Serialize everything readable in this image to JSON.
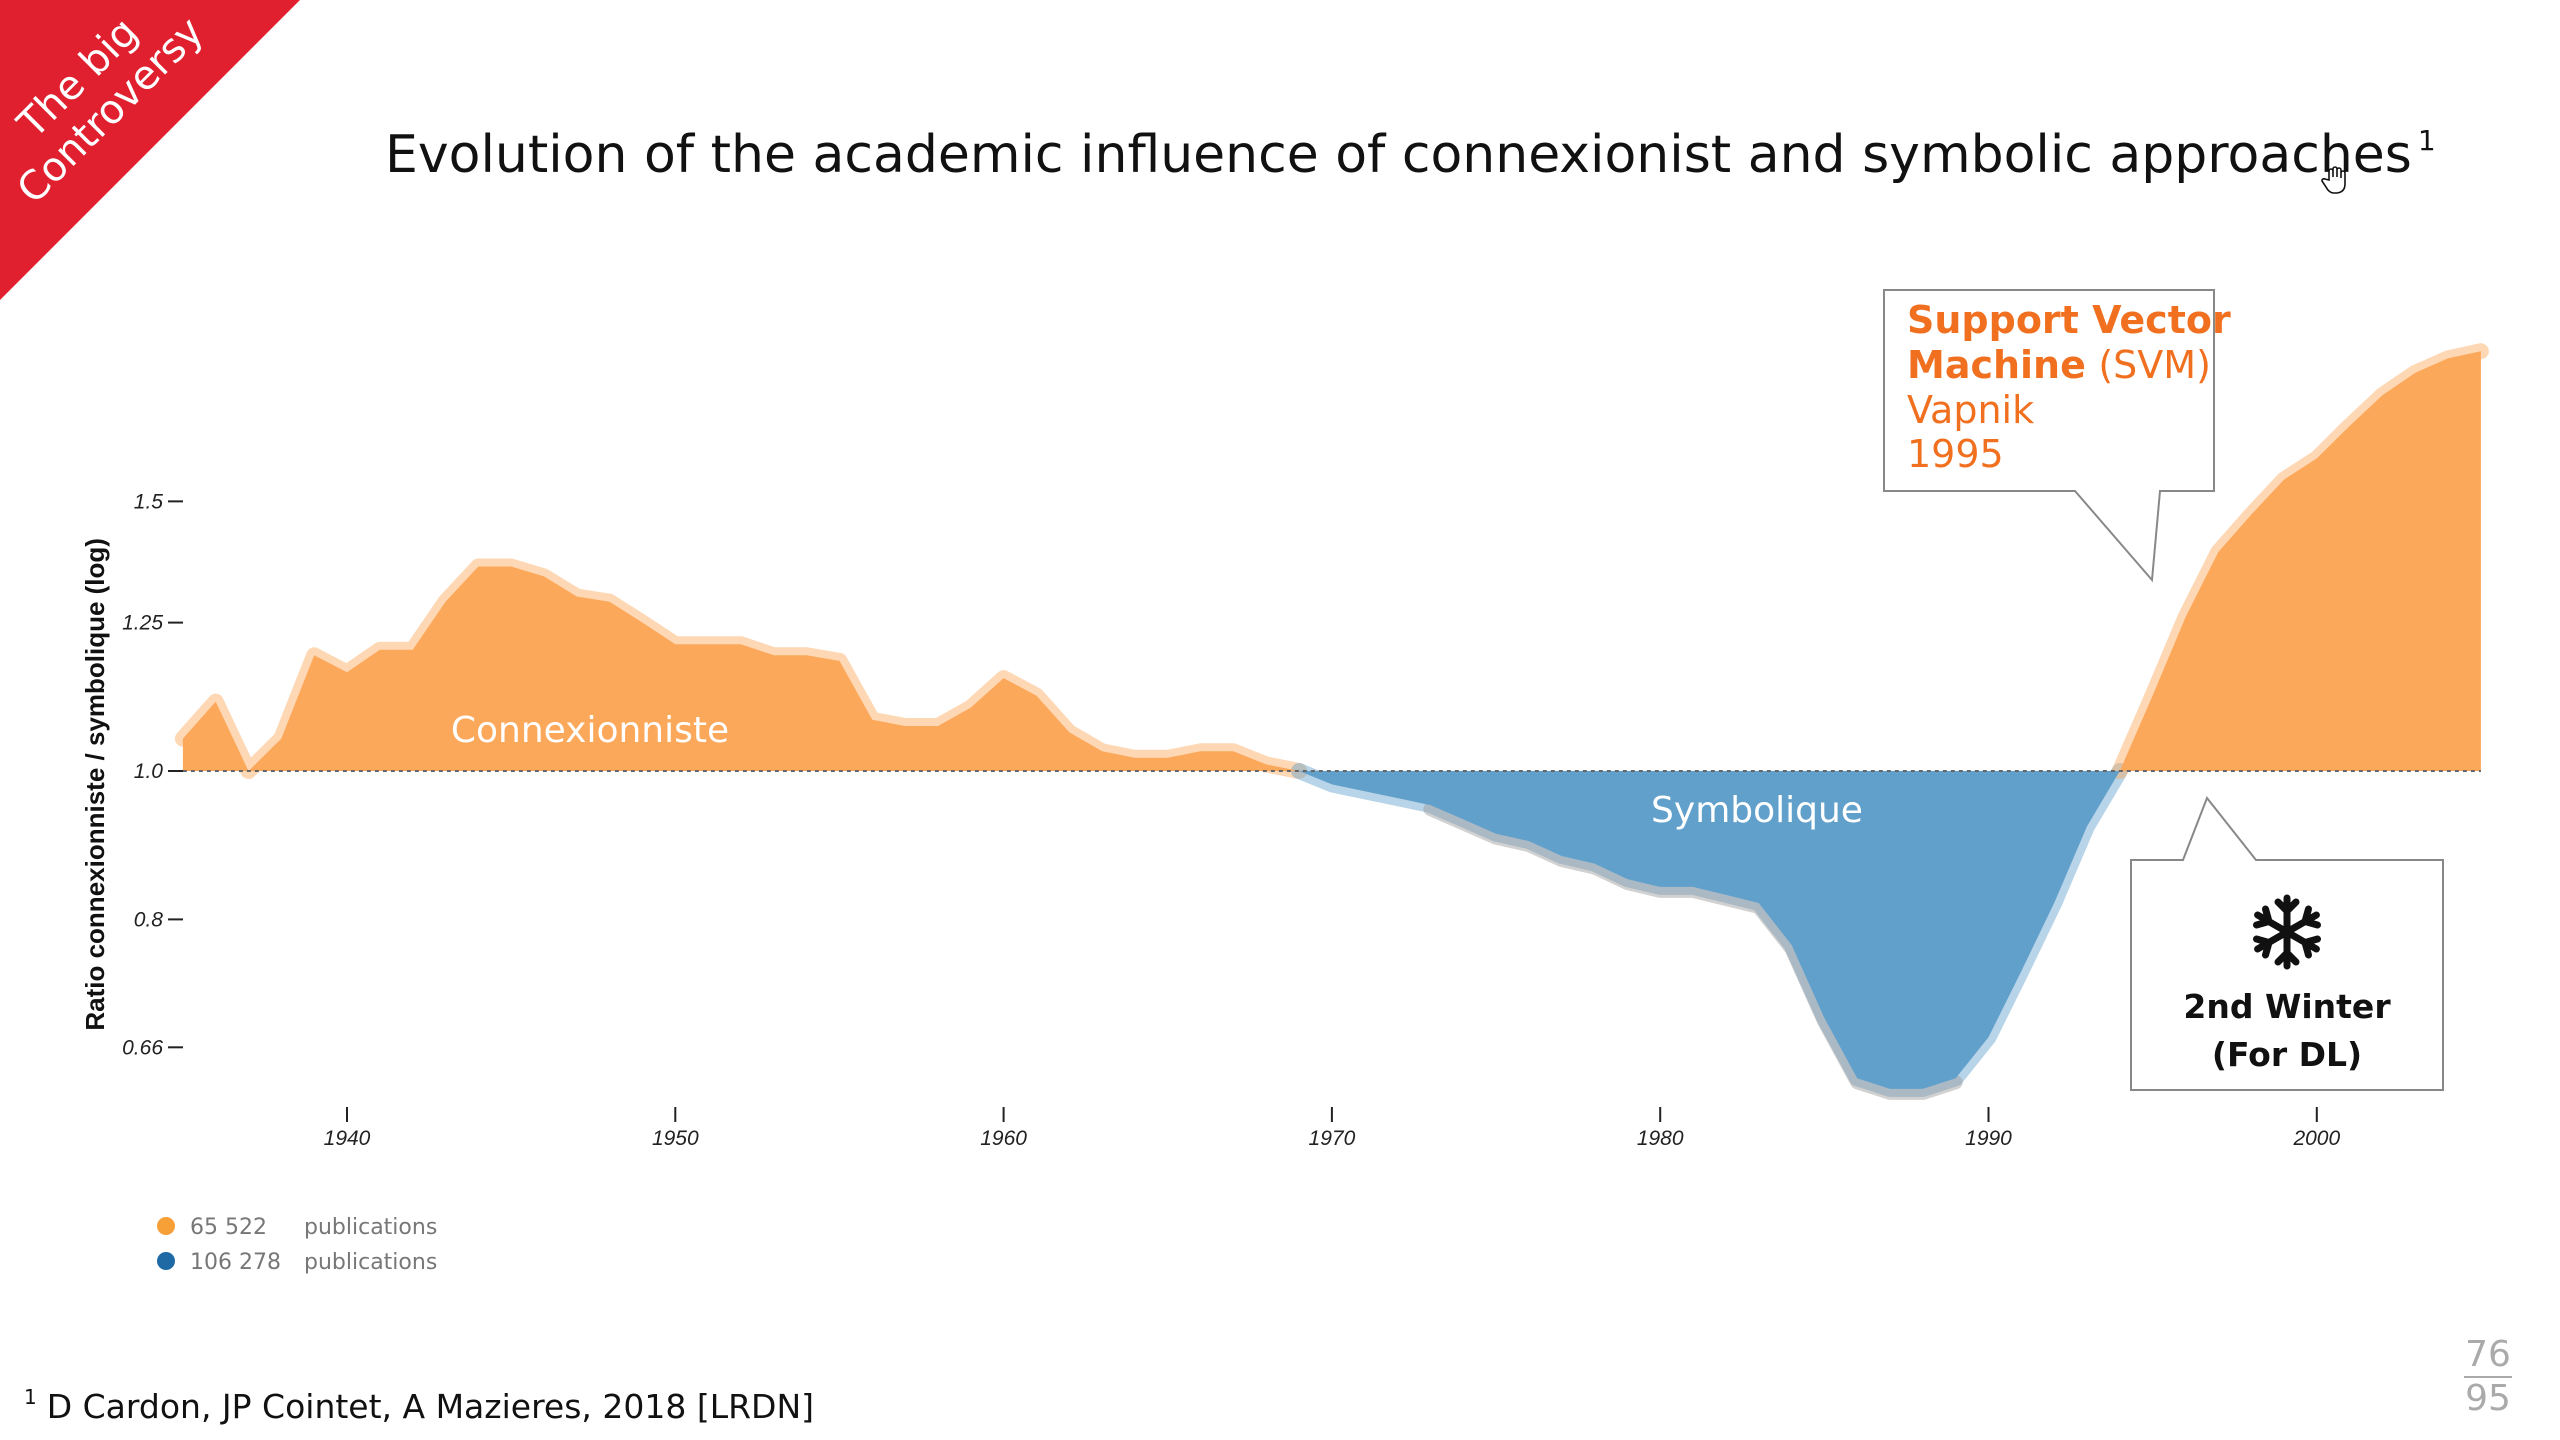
{
  "corner_badge": {
    "line1": "The big",
    "line2": "Controversy",
    "color": "#e0202f"
  },
  "title": {
    "text": "Evolution of the academic influence of connexionist and symbolic approaches",
    "footnote_mark": "1"
  },
  "chart_data": {
    "type": "area",
    "ylabel": "Ratio connexionniste / symbolique (log)",
    "yscale": "log",
    "ylim": [
      0.6,
      1.9
    ],
    "xlim": [
      1935,
      2005
    ],
    "xticks": [
      1940,
      1950,
      1960,
      1970,
      1980,
      1990,
      2000
    ],
    "yticks": [
      {
        "value": 1.5,
        "label": "1.5"
      },
      {
        "value": 1.25,
        "label": "1.25"
      },
      {
        "value": 1.0,
        "label": "1.0"
      },
      {
        "value": 0.8,
        "label": "0.8"
      },
      {
        "value": 0.66,
        "label": "0.66"
      }
    ],
    "baseline": 1.0,
    "colors": {
      "above": "#fca85a",
      "below": "#62a0cc"
    },
    "series": [
      {
        "name": "Connexionniste",
        "side": "above",
        "points": [
          [
            1935,
            1.05
          ],
          [
            1936,
            1.11
          ],
          [
            1937,
            1.0
          ],
          [
            1938,
            1.05
          ],
          [
            1939,
            1.19
          ],
          [
            1940,
            1.16
          ],
          [
            1941,
            1.2
          ],
          [
            1942,
            1.2
          ],
          [
            1943,
            1.29
          ],
          [
            1944,
            1.36
          ],
          [
            1945,
            1.36
          ],
          [
            1946,
            1.34
          ],
          [
            1947,
            1.3
          ],
          [
            1948,
            1.29
          ],
          [
            1949,
            1.25
          ],
          [
            1950,
            1.21
          ],
          [
            1951,
            1.21
          ],
          [
            1952,
            1.21
          ],
          [
            1953,
            1.19
          ],
          [
            1954,
            1.19
          ],
          [
            1955,
            1.18
          ],
          [
            1956,
            1.08
          ],
          [
            1957,
            1.07
          ],
          [
            1958,
            1.07
          ],
          [
            1959,
            1.1
          ],
          [
            1960,
            1.15
          ],
          [
            1961,
            1.12
          ],
          [
            1962,
            1.06
          ],
          [
            1963,
            1.03
          ],
          [
            1964,
            1.02
          ],
          [
            1965,
            1.02
          ],
          [
            1966,
            1.03
          ],
          [
            1967,
            1.03
          ],
          [
            1968,
            1.01
          ],
          [
            1969,
            1.0
          ]
        ]
      },
      {
        "name": "Symbolique",
        "side": "below",
        "points": [
          [
            1969,
            1.0
          ],
          [
            1970,
            0.98
          ],
          [
            1971,
            0.97
          ],
          [
            1972,
            0.96
          ],
          [
            1973,
            0.95
          ],
          [
            1974,
            0.93
          ],
          [
            1975,
            0.91
          ],
          [
            1976,
            0.9
          ],
          [
            1977,
            0.88
          ],
          [
            1978,
            0.87
          ],
          [
            1979,
            0.85
          ],
          [
            1980,
            0.84
          ],
          [
            1981,
            0.84
          ],
          [
            1982,
            0.83
          ],
          [
            1983,
            0.82
          ],
          [
            1984,
            0.77
          ],
          [
            1985,
            0.69
          ],
          [
            1986,
            0.63
          ],
          [
            1987,
            0.62
          ],
          [
            1988,
            0.62
          ],
          [
            1989,
            0.63
          ],
          [
            1990,
            0.67
          ],
          [
            1991,
            0.74
          ],
          [
            1992,
            0.82
          ],
          [
            1993,
            0.92
          ],
          [
            1994,
            1.0
          ]
        ]
      },
      {
        "name": "Connexionniste",
        "side": "above",
        "points": [
          [
            1994,
            1.0
          ],
          [
            1995,
            1.12
          ],
          [
            1996,
            1.26
          ],
          [
            1997,
            1.39
          ],
          [
            1998,
            1.47
          ],
          [
            1999,
            1.55
          ],
          [
            2000,
            1.6
          ],
          [
            2001,
            1.68
          ],
          [
            2002,
            1.76
          ],
          [
            2003,
            1.82
          ],
          [
            2004,
            1.86
          ],
          [
            2005,
            1.88
          ]
        ]
      }
    ],
    "annotations": [
      {
        "id": "svm",
        "bold_part": "Support Vector",
        "line2_bold": "Machine",
        "line2_normal": "(SVM)",
        "line3": "Vapnik",
        "line4": "1995",
        "points_to_year": 1995
      },
      {
        "id": "winter",
        "icon": "snowflake-icon",
        "line1": "2nd Winter",
        "line2": "(For DL)",
        "points_to_year": 1996
      }
    ]
  },
  "legend": [
    {
      "color": "#f7a037",
      "count": "65 522",
      "unit": "publications"
    },
    {
      "color": "#1f6aa5",
      "count": "106 278",
      "unit": "publications"
    }
  ],
  "footnote": {
    "mark": "1",
    "text": "D Cardon, JP Cointet, A Mazieres, 2018 [LRDN]"
  },
  "page": {
    "current": "76",
    "total": "95"
  }
}
